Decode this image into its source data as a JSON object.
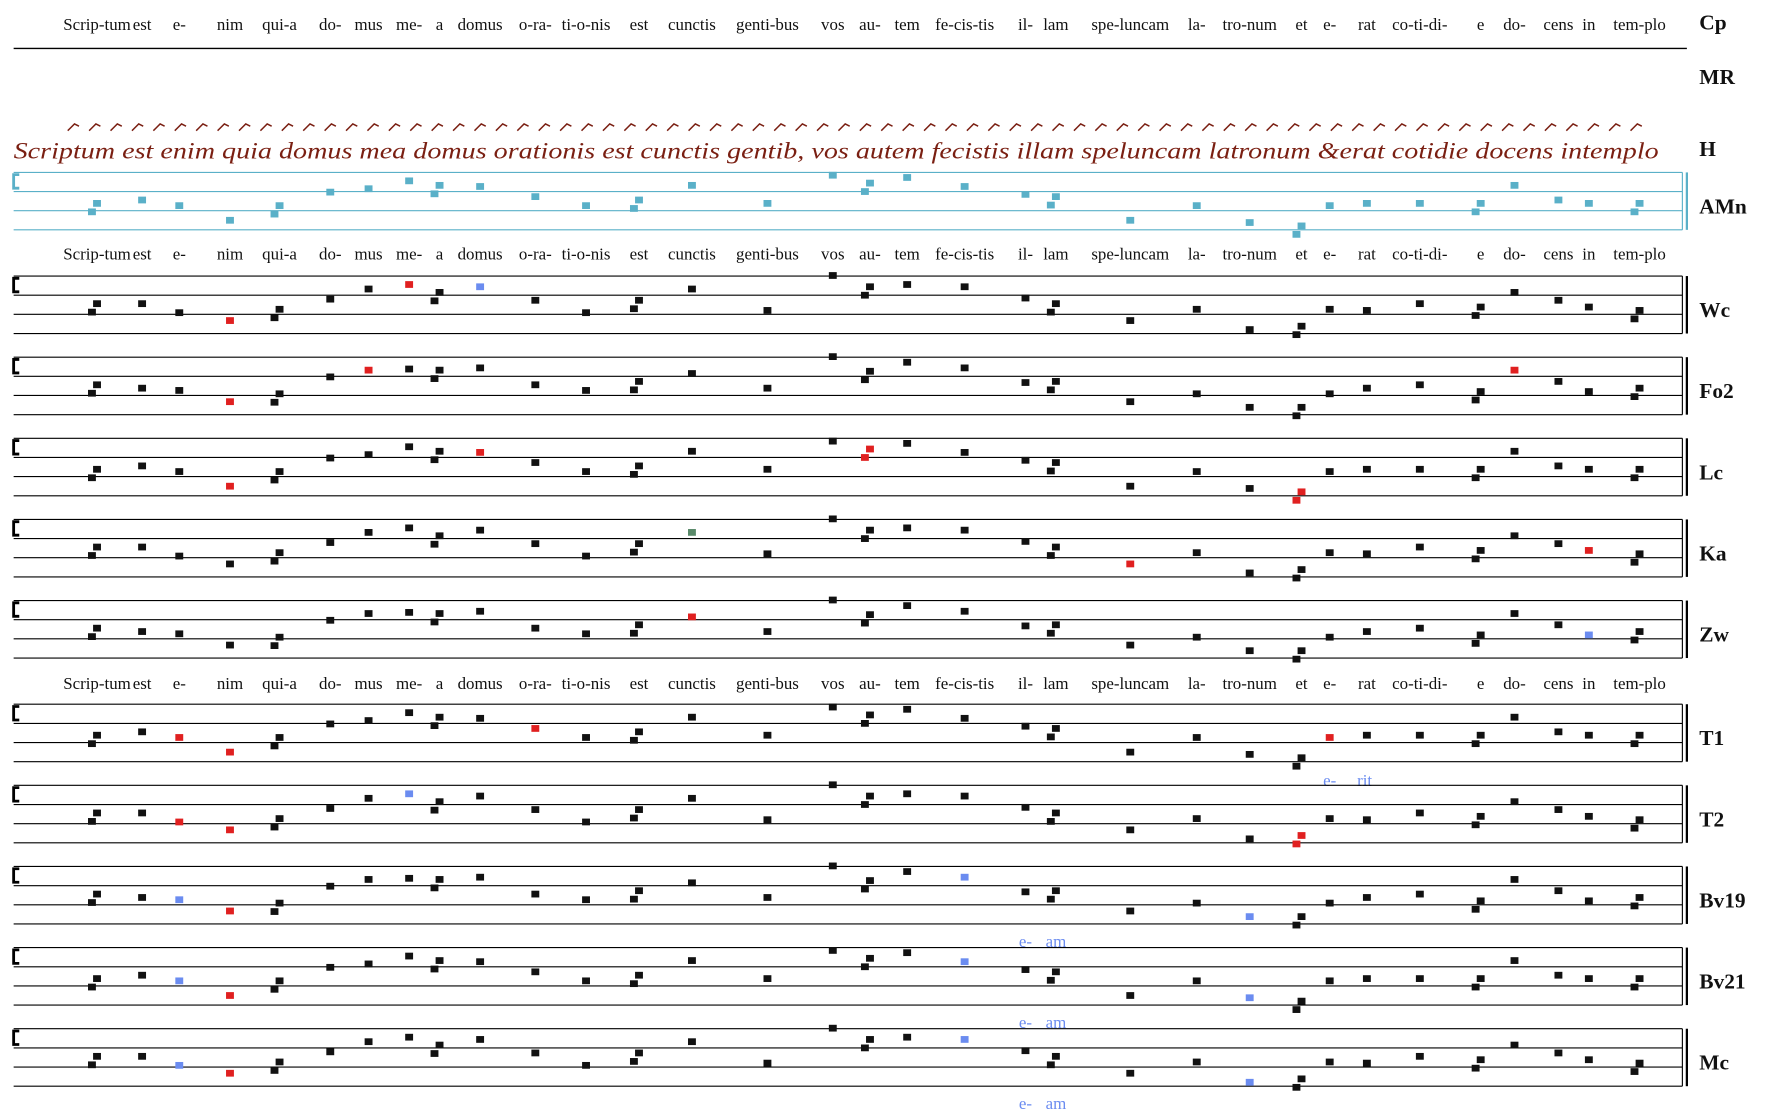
{
  "sigla": [
    "Cp",
    "MR",
    "H",
    "AMn",
    "Wc",
    "Fo2",
    "Lc",
    "Ka",
    "Zw",
    "T1",
    "T2",
    "Bv19",
    "Bv21",
    "Mc"
  ],
  "lyrics": [
    "Scrip-tum",
    "est",
    "e-",
    "nim",
    "qui-a",
    "do-",
    "mus",
    "me-",
    "a",
    "domus",
    "o-ra-",
    "ti-o-nis",
    "est",
    "cunctis",
    "genti-bus",
    "vos",
    "au-",
    "tem",
    "fe-cis-tis",
    "il-",
    "lam",
    "spe-luncam",
    "la-",
    "tro-num",
    "et",
    "e-",
    "rat",
    "co-ti-di-",
    "e",
    "do-",
    "cens",
    "in",
    "tem-plo"
  ],
  "manuscript_text": "Scriptum est enim quia domus mea domus orationis est cunctis gentib, vos autem fecistis illam speluncam latronum &erat cotidie docens intemplo",
  "annotations": {
    "erit": [
      "e-",
      "rit"
    ],
    "eam": [
      "e-",
      "am"
    ]
  }
}
